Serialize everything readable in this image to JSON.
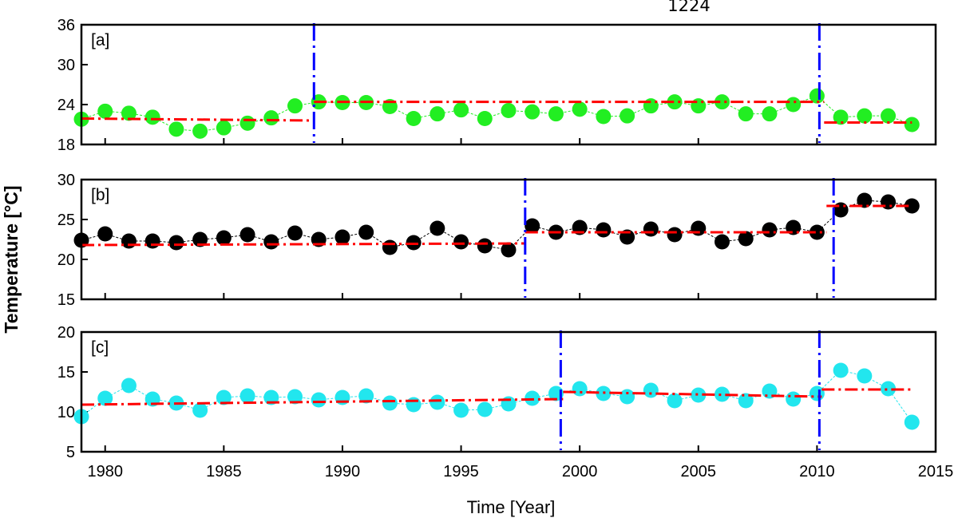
{
  "header_text": "1224",
  "chart_data": {
    "type": "scatter",
    "xlabel": "Time [Year]",
    "ylabel": "Temperature [°C]",
    "xlim": [
      1979,
      2015
    ],
    "xticks": [
      1980,
      1985,
      1990,
      1995,
      2000,
      2005,
      2010,
      2015
    ],
    "colors": {
      "trend": "#ff0000",
      "changepoint": "#0000ff"
    },
    "panels": [
      {
        "label": "[a]",
        "ylim": [
          18,
          36
        ],
        "yticks": [
          18,
          24,
          30,
          36
        ],
        "point_color": "#22ee22",
        "x": [
          1979,
          1980,
          1981,
          1982,
          1983,
          1984,
          1985,
          1986,
          1987,
          1988,
          1989,
          1990,
          1991,
          1992,
          1993,
          1994,
          1995,
          1996,
          1997,
          1998,
          1999,
          2000,
          2001,
          2002,
          2003,
          2004,
          2005,
          2006,
          2007,
          2008,
          2009,
          2010,
          2011,
          2012,
          2013,
          2014
        ],
        "y": [
          21.8,
          23.0,
          22.7,
          22.1,
          20.3,
          20.0,
          20.5,
          21.2,
          22.0,
          23.8,
          24.4,
          24.3,
          24.3,
          23.7,
          21.9,
          22.6,
          23.2,
          21.9,
          23.1,
          22.9,
          22.6,
          23.3,
          22.2,
          22.3,
          23.8,
          24.4,
          23.8,
          24.4,
          22.6,
          22.6,
          24.0,
          25.3,
          22.1,
          22.3,
          22.3,
          21.0
        ],
        "trend_segments": [
          {
            "x": [
              1979,
              1988.8
            ],
            "y": [
              21.9,
              21.6
            ]
          },
          {
            "x": [
              1988.8,
              2010.3
            ],
            "y": [
              24.4,
              24.4
            ]
          },
          {
            "x": [
              2010.3,
              2014
            ],
            "y": [
              21.3,
              21.3
            ]
          }
        ],
        "change_points": [
          1988.8,
          2010.1
        ]
      },
      {
        "label": "[b]",
        "ylim": [
          15,
          30
        ],
        "yticks": [
          15,
          20,
          25,
          30
        ],
        "point_color": "#000000",
        "x": [
          1979,
          1980,
          1981,
          1982,
          1983,
          1984,
          1985,
          1986,
          1987,
          1988,
          1989,
          1990,
          1991,
          1992,
          1993,
          1994,
          1995,
          1996,
          1997,
          1998,
          1999,
          2000,
          2001,
          2002,
          2003,
          2004,
          2005,
          2006,
          2007,
          2008,
          2009,
          2010,
          2011,
          2012,
          2013,
          2014
        ],
        "y": [
          22.4,
          23.2,
          22.3,
          22.3,
          22.1,
          22.5,
          22.7,
          23.1,
          22.2,
          23.3,
          22.5,
          22.8,
          23.4,
          21.5,
          22.1,
          23.9,
          22.2,
          21.7,
          21.2,
          24.2,
          23.4,
          24.0,
          23.7,
          22.8,
          23.8,
          23.1,
          23.9,
          22.2,
          22.6,
          23.7,
          24.0,
          23.4,
          26.2,
          27.4,
          27.2,
          26.7
        ],
        "trend_segments": [
          {
            "x": [
              1979,
              1997.7
            ],
            "y": [
              21.8,
              22.0
            ]
          },
          {
            "x": [
              1997.7,
              2010.4
            ],
            "y": [
              23.4,
              23.4
            ]
          },
          {
            "x": [
              2010.4,
              2014
            ],
            "y": [
              26.7,
              26.7
            ]
          }
        ],
        "change_points": [
          1997.7,
          2010.7
        ]
      },
      {
        "label": "[c]",
        "ylim": [
          5,
          20
        ],
        "yticks": [
          5,
          10,
          15,
          20
        ],
        "point_color": "#22e6ee",
        "x": [
          1979,
          1980,
          1981,
          1982,
          1983,
          1984,
          1985,
          1986,
          1987,
          1988,
          1989,
          1990,
          1991,
          1992,
          1993,
          1994,
          1995,
          1996,
          1997,
          1998,
          1999,
          2000,
          2001,
          2002,
          2003,
          2004,
          2005,
          2006,
          2007,
          2008,
          2009,
          2010,
          2011,
          2012,
          2013,
          2014
        ],
        "y": [
          9.4,
          11.7,
          13.3,
          11.6,
          11.1,
          10.2,
          11.8,
          12.0,
          11.8,
          11.9,
          11.5,
          11.8,
          12.0,
          11.1,
          10.9,
          11.2,
          10.2,
          10.3,
          11.0,
          11.7,
          12.3,
          12.9,
          12.3,
          11.9,
          12.7,
          11.4,
          12.1,
          12.2,
          11.4,
          12.6,
          11.6,
          12.3,
          15.2,
          14.5,
          12.9,
          8.7
        ],
        "trend_segments": [
          {
            "x": [
              1979,
              1999.3
            ],
            "y": [
              10.9,
              11.6
            ]
          },
          {
            "x": [
              1999.3,
              2010.2
            ],
            "y": [
              12.5,
              11.9
            ]
          },
          {
            "x": [
              2010.2,
              2014
            ],
            "y": [
              12.8,
              12.8
            ]
          }
        ],
        "change_points": [
          1999.2,
          2010.1
        ]
      }
    ]
  }
}
